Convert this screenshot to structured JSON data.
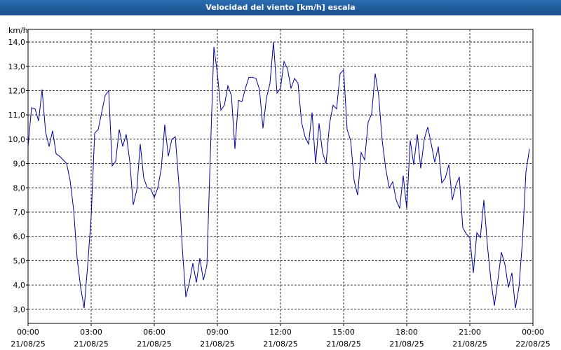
{
  "chart_data": {
    "type": "line",
    "title": "Velocidad del viento [km/h] escala",
    "y_label": "km/h",
    "x": [
      0,
      10,
      20,
      30,
      40,
      50,
      60,
      70,
      80,
      90,
      100,
      110,
      120,
      130,
      140,
      150,
      160,
      170,
      180,
      190,
      200,
      210,
      220,
      230,
      240,
      250,
      260,
      270,
      280,
      290,
      300,
      310,
      320,
      330,
      340,
      350,
      360,
      370,
      380,
      390,
      400,
      410,
      420,
      430,
      440,
      450,
      460,
      470,
      480,
      490,
      500,
      510,
      520,
      530,
      540,
      550,
      560,
      570,
      580,
      590,
      600,
      610,
      620,
      630,
      640,
      650,
      660,
      670,
      680,
      690,
      700,
      710,
      720,
      730,
      740,
      750,
      760,
      770,
      780,
      790,
      800,
      810,
      820,
      830,
      840,
      850,
      860,
      870,
      880,
      890,
      900,
      910,
      920,
      930,
      940,
      950,
      960,
      970,
      980,
      990,
      1000,
      1010,
      1020,
      1030,
      1040,
      1050,
      1060,
      1070,
      1080,
      1090,
      1100,
      1110,
      1120,
      1130,
      1140,
      1150,
      1160,
      1170,
      1180,
      1190,
      1200,
      1210,
      1220,
      1230,
      1240,
      1250,
      1260,
      1270,
      1280,
      1290,
      1300,
      1310,
      1320,
      1330,
      1340,
      1350,
      1360,
      1370,
      1380,
      1390,
      1400,
      1410,
      1420,
      1430
    ],
    "series": [
      {
        "color": "#0000a0",
        "values": [
          9.7,
          11.3,
          11.25,
          10.75,
          12.05,
          10.3,
          9.7,
          10.35,
          9.4,
          9.3,
          9.15,
          9.0,
          8.3,
          7.1,
          5.1,
          3.9,
          3.05,
          4.8,
          6.8,
          10.25,
          10.4,
          11.1,
          11.8,
          12.0,
          8.9,
          9.1,
          10.4,
          9.7,
          10.2,
          9.1,
          7.3,
          7.9,
          9.8,
          8.4,
          8.0,
          7.95,
          7.6,
          8.0,
          8.8,
          10.6,
          9.3,
          10.0,
          10.1,
          8.2,
          5.5,
          3.5,
          4.1,
          4.9,
          4.1,
          5.1,
          4.2,
          4.8,
          9.4,
          13.8,
          12.7,
          11.2,
          11.4,
          12.2,
          11.8,
          9.6,
          11.6,
          11.55,
          12.1,
          12.55,
          12.55,
          12.5,
          12.05,
          10.45,
          11.7,
          12.3,
          14.0,
          11.9,
          12.1,
          13.2,
          12.9,
          12.1,
          12.5,
          12.3,
          10.7,
          10.1,
          9.8,
          11.1,
          9.0,
          10.65,
          9.45,
          9.0,
          10.65,
          11.4,
          11.25,
          12.7,
          12.85,
          10.4,
          9.95,
          8.3,
          7.7,
          9.45,
          9.15,
          10.7,
          11.05,
          12.7,
          11.8,
          9.95,
          8.8,
          8.0,
          8.25,
          7.5,
          7.15,
          8.5,
          7.15,
          9.95,
          8.95,
          10.2,
          8.8,
          10.0,
          10.5,
          9.8,
          9.05,
          9.7,
          8.2,
          8.4,
          8.95,
          7.5,
          8.1,
          8.45,
          6.35,
          6.1,
          5.95,
          4.5,
          6.15,
          5.95,
          7.5,
          5.65,
          4.2,
          3.15,
          4.2,
          5.35,
          4.85,
          3.9,
          4.5,
          3.05,
          3.9,
          5.8,
          8.65,
          9.6
        ]
      }
    ],
    "xlim": [
      0,
      1440
    ],
    "xticks": [
      {
        "value": 0,
        "label": "00:00",
        "date": "21/08/25"
      },
      {
        "value": 180,
        "label": "03:00",
        "date": "21/08/25"
      },
      {
        "value": 360,
        "label": "06:00",
        "date": "21/08/25"
      },
      {
        "value": 540,
        "label": "09:00",
        "date": "21/08/25"
      },
      {
        "value": 720,
        "label": "12:00",
        "date": "21/08/25"
      },
      {
        "value": 900,
        "label": "15:00",
        "date": "21/08/25"
      },
      {
        "value": 1080,
        "label": "18:00",
        "date": "21/08/25"
      },
      {
        "value": 1260,
        "label": "21:00",
        "date": "21/08/25"
      },
      {
        "value": 1440,
        "label": "00:00",
        "date": "22/08/25"
      }
    ],
    "ylim": [
      2.42,
      14.52
    ],
    "yticks": [
      {
        "value": 3,
        "label": "3,0"
      },
      {
        "value": 4,
        "label": "4,0"
      },
      {
        "value": 5,
        "label": "5,0"
      },
      {
        "value": 6,
        "label": "6,0"
      },
      {
        "value": 7,
        "label": "7,0"
      },
      {
        "value": 8,
        "label": "8,0"
      },
      {
        "value": 9,
        "label": "9,0"
      },
      {
        "value": 10,
        "label": "10,0"
      },
      {
        "value": 11,
        "label": "11,0"
      },
      {
        "value": 12,
        "label": "12,0"
      },
      {
        "value": 13,
        "label": "13,0"
      },
      {
        "value": 14,
        "label": "14,0"
      }
    ],
    "grid": true
  }
}
